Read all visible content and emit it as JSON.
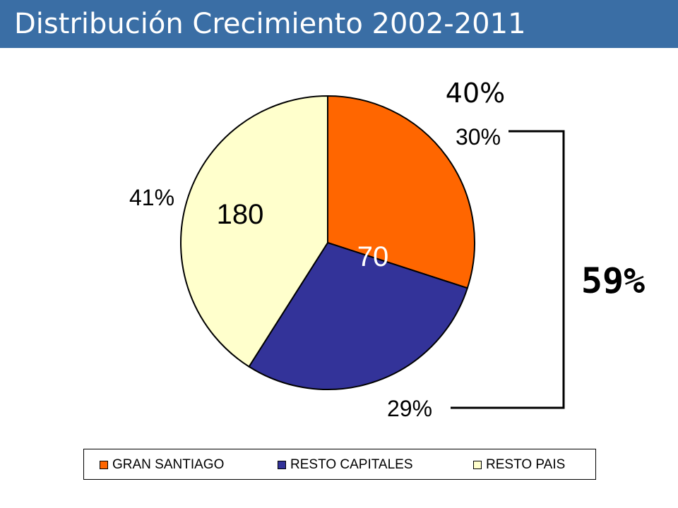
{
  "header": {
    "title": "Distribución Crecimiento 2002-2011"
  },
  "chart_data": {
    "type": "pie",
    "title": "Distribución Crecimiento 2002-2011",
    "categories": [
      "GRAN SANTIAGO",
      "RESTO CAPITALES",
      "RESTO PAIS"
    ],
    "values": [
      30,
      29,
      41
    ],
    "percent_labels": [
      "30%",
      "29%",
      "41%"
    ],
    "colors": [
      "#ff6600",
      "#333399",
      "#ffffcc"
    ],
    "in_slice_labels": [
      "70",
      "180"
    ],
    "annotations": {
      "top_label": "40%",
      "bracket_total": "59%"
    },
    "legend": {
      "placement": "bottom",
      "entries": [
        "GRAN SANTIAGO",
        "RESTO CAPITALES",
        "RESTO PAIS"
      ]
    }
  }
}
